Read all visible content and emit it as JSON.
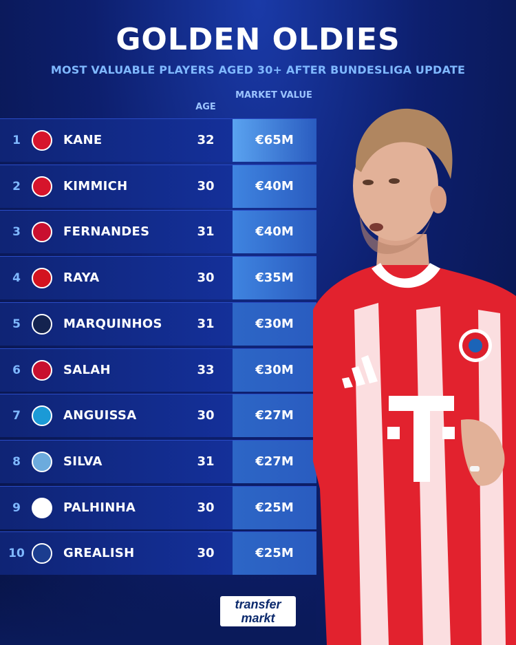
{
  "header": {
    "title": "GOLDEN OLDIES",
    "subtitle": "MOST VALUABLE PLAYERS AGED 30+ AFTER BUNDESLIGA UPDATE"
  },
  "columns": {
    "age": "AGE",
    "market_value": "MARKET VALUE"
  },
  "players": [
    {
      "rank": "1",
      "name": "KANE",
      "age": "32",
      "value": "€65M",
      "club_icon": "bayern-crest",
      "club_color": "#d6142b"
    },
    {
      "rank": "2",
      "name": "KIMMICH",
      "age": "30",
      "value": "€40M",
      "club_icon": "bayern-crest",
      "club_color": "#d6142b"
    },
    {
      "rank": "3",
      "name": "FERNANDES",
      "age": "31",
      "value": "€40M",
      "club_icon": "man-utd-crest",
      "club_color": "#c9102f"
    },
    {
      "rank": "4",
      "name": "RAYA",
      "age": "30",
      "value": "€35M",
      "club_icon": "arsenal-crest",
      "club_color": "#d3131f"
    },
    {
      "rank": "5",
      "name": "MARQUINHOS",
      "age": "31",
      "value": "€30M",
      "club_icon": "psg-crest",
      "club_color": "#14234f"
    },
    {
      "rank": "6",
      "name": "SALAH",
      "age": "33",
      "value": "€30M",
      "club_icon": "liverpool-crest",
      "club_color": "#c8102e"
    },
    {
      "rank": "7",
      "name": "ANGUISSA",
      "age": "30",
      "value": "€27M",
      "club_icon": "napoli-crest",
      "club_color": "#1b9ad6"
    },
    {
      "rank": "8",
      "name": "SILVA",
      "age": "31",
      "value": "€27M",
      "club_icon": "man-city-crest",
      "club_color": "#6cabdd"
    },
    {
      "rank": "9",
      "name": "PALHINHA",
      "age": "30",
      "value": "€25M",
      "club_icon": "tottenham-crest",
      "club_color": "#ffffff"
    },
    {
      "rank": "10",
      "name": "GREALISH",
      "age": "30",
      "value": "€25M",
      "club_icon": "everton-crest",
      "club_color": "#1b3d8f"
    }
  ],
  "branding": {
    "logo_line1": "transfer",
    "logo_line2": "markt"
  },
  "colors": {
    "accent_blue": "#7fb8ff",
    "value_cell_top": "#5aa3f0",
    "bayern_red": "#dc1f2c"
  }
}
